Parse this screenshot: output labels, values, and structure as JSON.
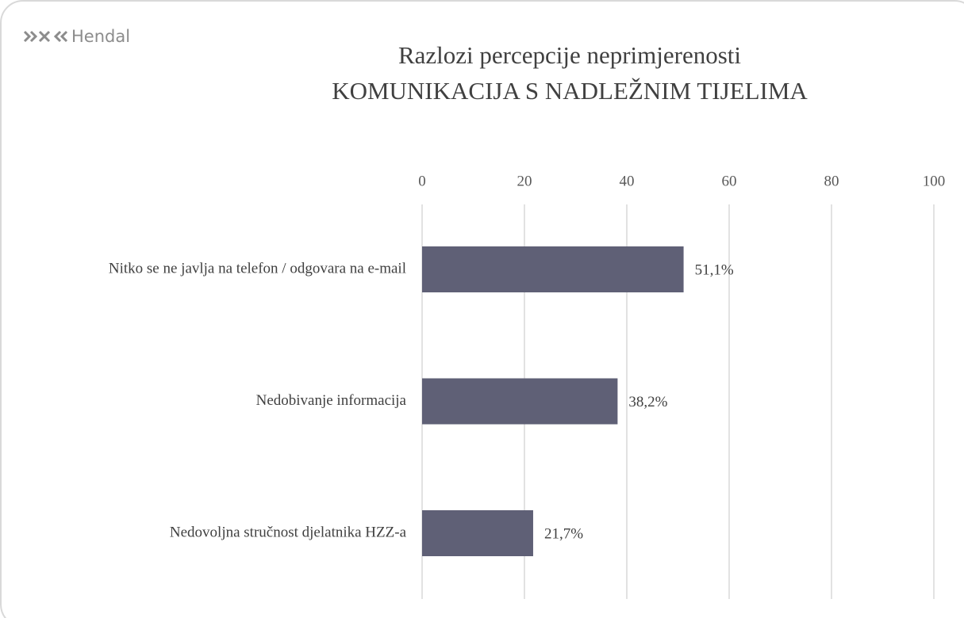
{
  "logo": "Hendal",
  "chart_data": {
    "type": "bar",
    "orientation": "horizontal",
    "title": [
      "Razlozi percepcije neprimjerenosti",
      "KOMUNIKACIJA S NADLEŽNIM TIJELIMA"
    ],
    "categories": [
      "Nitko se ne javlja na telefon / odgovara na e-mail",
      "Nedobivanje informacija",
      "Nedovoljna stručnost djelatnika HZZ-a"
    ],
    "values": [
      51.1,
      38.2,
      21.7
    ],
    "value_labels": [
      "51,1%",
      "38,2%",
      "21,7%"
    ],
    "color": "#5f6076",
    "xlim": [
      0,
      100
    ],
    "xticks": [
      0,
      20,
      40,
      60,
      80,
      100
    ],
    "grid": true
  }
}
